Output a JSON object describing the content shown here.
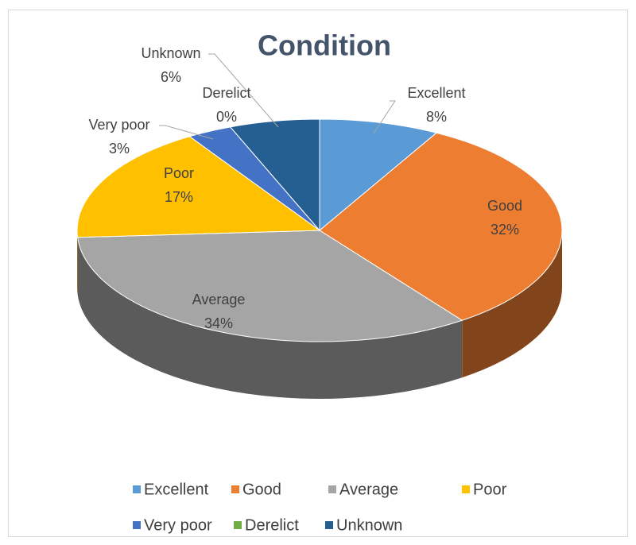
{
  "chart_data": {
    "type": "pie",
    "title": "Condition",
    "categories": [
      "Excellent",
      "Good",
      "Average",
      "Poor",
      "Very poor",
      "Derelict",
      "Unknown"
    ],
    "values": [
      8,
      32,
      34,
      17,
      3,
      0,
      6
    ],
    "value_labels": [
      "8%",
      "32%",
      "34%",
      "17%",
      "3%",
      "0%",
      "6%"
    ],
    "colors": [
      "#5b9bd5",
      "#ed7d31",
      "#a5a5a5",
      "#ffc000",
      "#4472c4",
      "#70ad47",
      "#255e91"
    ],
    "legend": "bottom"
  }
}
